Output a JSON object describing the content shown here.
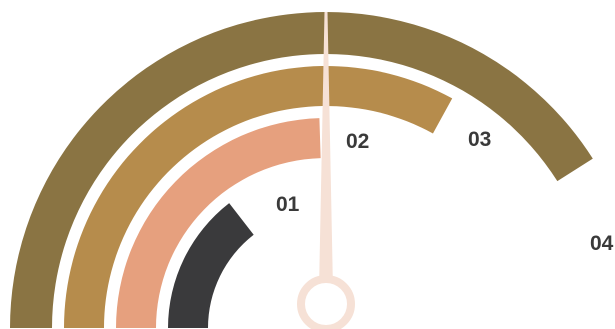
{
  "gauge": {
    "arcs": [
      {
        "label": "01",
        "level": 0.29,
        "color": "#3a3a3c"
      },
      {
        "label": "02",
        "level": 0.49,
        "color": "#e6a07e"
      },
      {
        "label": "03",
        "level": 0.66,
        "color": "#b68c4c"
      },
      {
        "label": "04",
        "level": 0.82,
        "color": "#8a7443"
      }
    ],
    "needle": {
      "color": "#f6e1d6",
      "hub_icon": "ring-hub-icon"
    }
  }
}
